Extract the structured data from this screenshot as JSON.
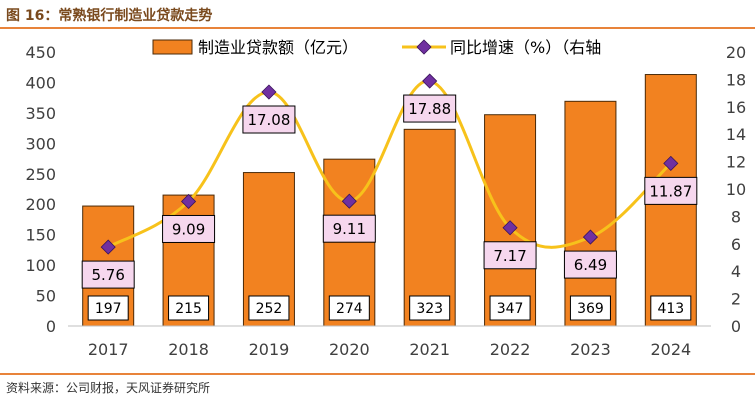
{
  "figure": {
    "title": "图 16：常熟银行制造业贷款走势",
    "source": "资料来源：公司财报，天风证券研究所"
  },
  "colors": {
    "bar": "#f28220",
    "bar_edge": "#4a2a08",
    "line": "#f7c21b",
    "marker": "#7030a0",
    "pct_label_fill": "#f6d7ee",
    "val_label_fill": "#ffffff",
    "accent_rule": "#e8833a",
    "title": "#7a4a1e",
    "axis_text": "#404040"
  },
  "chart_data": {
    "type": "bar",
    "categories": [
      "2017",
      "2018",
      "2019",
      "2020",
      "2021",
      "2022",
      "2023",
      "2024"
    ],
    "series": [
      {
        "name": "制造业贷款额（亿元）",
        "type": "bar",
        "axis": "left",
        "values": [
          197,
          215,
          252,
          274,
          323,
          347,
          369,
          413
        ],
        "labels": [
          "197",
          "215",
          "252",
          "274",
          "323",
          "347",
          "369",
          "413"
        ]
      },
      {
        "name": "同比增速（%）（右轴",
        "type": "line",
        "axis": "right",
        "values": [
          5.76,
          9.09,
          17.08,
          9.11,
          17.88,
          7.17,
          6.49,
          11.87
        ],
        "labels": [
          "5.76",
          "9.09",
          "17.08",
          "9.11",
          "17.88",
          "7.17",
          "6.49",
          "11.87"
        ]
      }
    ],
    "y_left": {
      "min": 0,
      "max": 450,
      "step": 50,
      "ticks": [
        "0",
        "50",
        "100",
        "150",
        "200",
        "250",
        "300",
        "350",
        "400",
        "450"
      ]
    },
    "y_right": {
      "min": 0,
      "max": 20,
      "step": 2,
      "ticks": [
        "0",
        "2",
        "4",
        "6",
        "8",
        "10",
        "12",
        "14",
        "16",
        "18",
        "20"
      ]
    },
    "grid": false,
    "legend_position": "top"
  }
}
